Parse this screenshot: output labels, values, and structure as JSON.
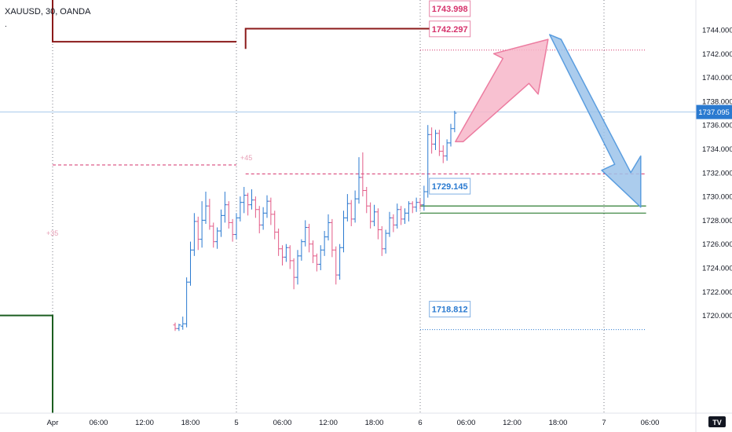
{
  "header": {
    "title": "XAUUSD, 30, OANDA",
    "dot": "."
  },
  "chart_data": {
    "type": "candlestick",
    "symbol": "XAUUSD",
    "interval": "30",
    "broker": "OANDA",
    "y_ticks": [
      "1720.000",
      "1722.000",
      "1724.000",
      "1726.000",
      "1728.000",
      "1730.000",
      "1732.000",
      "1734.000",
      "1736.000",
      "1738.000",
      "1740.000",
      "1742.000",
      "1744.000"
    ],
    "y_tick_values": [
      1720,
      1722,
      1724,
      1726,
      1728,
      1730,
      1732,
      1734,
      1736,
      1738,
      1740,
      1742,
      1744
    ],
    "ylim": [
      1718.3,
      1745.6
    ],
    "x_ticks": [
      "Apr",
      "06:00",
      "12:00",
      "18:00",
      "5",
      "06:00",
      "12:00",
      "18:00",
      "6",
      "06:00",
      "12:00",
      "18:00",
      "7",
      "06:00"
    ],
    "x_tick_hours": [
      0,
      6,
      12,
      18,
      24,
      30,
      36,
      42,
      48,
      54,
      60,
      66,
      72,
      78
    ],
    "last_price": "1737.095",
    "last_price_value": 1737.095,
    "levels": {
      "resistance_top": "1743.998",
      "resistance": "1742.297",
      "pivot": "1729.145",
      "support": "1718.812",
      "resistance_top_value": 1743.998,
      "resistance_value": 1742.297,
      "pivot_value": 1729.145,
      "support_value": 1718.812
    },
    "annotations": {
      "plus_left": "+35",
      "plus_right": "+45"
    },
    "colors": {
      "up": "#2a7ad0",
      "down": "#e25b87",
      "pink": "#d6336c",
      "blue": "#2a7ad0",
      "dark_red": "#8b1a1a",
      "green": "#2e7d32",
      "arrow_pink": "#f7b6c9",
      "arrow_blue": "#9cc3ea"
    },
    "candles": [
      [
        16.0,
        1719.2,
        1718.9,
        1719.4,
        1718.7
      ],
      [
        16.5,
        1718.9,
        1719.2,
        1719.3,
        1718.7
      ],
      [
        17.0,
        1719.1,
        1719.3,
        1719.9,
        1718.8
      ],
      [
        17.5,
        1719.3,
        1722.8,
        1723.2,
        1719.0
      ],
      [
        18.0,
        1722.8,
        1725.5,
        1726.2,
        1722.5
      ],
      [
        18.5,
        1725.5,
        1727.9,
        1728.6,
        1725.0
      ],
      [
        19.0,
        1727.9,
        1726.4,
        1728.3,
        1725.5
      ],
      [
        19.5,
        1726.4,
        1728.0,
        1729.6,
        1725.7
      ],
      [
        20.0,
        1728.0,
        1729.2,
        1730.4,
        1727.7
      ],
      [
        20.5,
        1729.2,
        1727.5,
        1729.8,
        1727.2
      ],
      [
        21.0,
        1727.5,
        1726.2,
        1727.8,
        1725.7
      ],
      [
        21.5,
        1726.2,
        1727.1,
        1727.4,
        1725.6
      ],
      [
        22.0,
        1727.1,
        1728.4,
        1728.9,
        1726.6
      ],
      [
        22.5,
        1728.4,
        1729.3,
        1730.4,
        1727.8
      ],
      [
        23.0,
        1729.3,
        1727.8,
        1729.6,
        1727.3
      ],
      [
        23.5,
        1727.8,
        1726.8,
        1728.1,
        1726.2
      ],
      [
        24.0,
        1726.8,
        1728.2,
        1728.6,
        1726.4
      ],
      [
        24.5,
        1728.2,
        1729.5,
        1730.0,
        1727.9
      ],
      [
        25.0,
        1729.5,
        1730.1,
        1730.8,
        1728.6
      ],
      [
        25.5,
        1730.1,
        1729.3,
        1730.3,
        1728.4
      ],
      [
        26.0,
        1729.3,
        1729.7,
        1730.6,
        1728.9
      ],
      [
        26.5,
        1729.7,
        1728.9,
        1730.0,
        1728.2
      ],
      [
        27.0,
        1728.9,
        1727.6,
        1729.2,
        1726.9
      ],
      [
        27.5,
        1727.6,
        1728.6,
        1729.1,
        1727.2
      ],
      [
        28.0,
        1728.6,
        1729.6,
        1730.1,
        1728.2
      ],
      [
        28.5,
        1729.6,
        1728.5,
        1729.9,
        1727.6
      ],
      [
        29.0,
        1728.5,
        1727.0,
        1728.8,
        1726.4
      ],
      [
        29.5,
        1727.0,
        1725.6,
        1727.3,
        1725.0
      ],
      [
        30.0,
        1725.6,
        1724.9,
        1725.9,
        1724.2
      ],
      [
        30.5,
        1724.9,
        1725.7,
        1726.0,
        1724.5
      ],
      [
        31.0,
        1725.7,
        1724.6,
        1725.9,
        1723.9
      ],
      [
        31.5,
        1724.6,
        1723.2,
        1724.8,
        1722.2
      ],
      [
        32.0,
        1723.2,
        1725.0,
        1725.5,
        1722.6
      ],
      [
        32.5,
        1725.0,
        1726.2,
        1726.4,
        1724.6
      ],
      [
        33.0,
        1726.2,
        1727.4,
        1728.0,
        1725.8
      ],
      [
        33.5,
        1727.4,
        1726.0,
        1727.7,
        1725.3
      ],
      [
        34.0,
        1726.0,
        1725.0,
        1726.3,
        1724.4
      ],
      [
        34.5,
        1725.0,
        1724.3,
        1725.2,
        1723.7
      ],
      [
        35.0,
        1724.3,
        1725.5,
        1725.9,
        1723.8
      ],
      [
        35.5,
        1725.5,
        1726.6,
        1727.1,
        1725.0
      ],
      [
        36.0,
        1726.6,
        1727.8,
        1728.5,
        1726.3
      ],
      [
        36.5,
        1727.8,
        1725.5,
        1728.1,
        1724.9
      ],
      [
        37.0,
        1725.5,
        1723.4,
        1725.8,
        1722.6
      ],
      [
        37.5,
        1723.4,
        1725.7,
        1726.0,
        1723.0
      ],
      [
        38.0,
        1725.7,
        1728.2,
        1728.8,
        1725.3
      ],
      [
        38.5,
        1728.2,
        1729.4,
        1730.2,
        1727.9
      ],
      [
        39.0,
        1729.4,
        1728.1,
        1729.7,
        1727.5
      ],
      [
        39.5,
        1728.1,
        1729.8,
        1730.5,
        1727.8
      ],
      [
        40.0,
        1729.8,
        1731.6,
        1733.3,
        1729.4
      ],
      [
        40.5,
        1731.6,
        1730.5,
        1733.7,
        1730.0
      ],
      [
        41.0,
        1730.5,
        1729.2,
        1730.8,
        1728.6
      ],
      [
        41.5,
        1729.2,
        1727.9,
        1729.5,
        1727.3
      ],
      [
        42.0,
        1727.9,
        1728.7,
        1729.3,
        1727.5
      ],
      [
        42.5,
        1728.7,
        1727.2,
        1729.0,
        1726.4
      ],
      [
        43.0,
        1727.2,
        1725.6,
        1727.5,
        1725.0
      ],
      [
        43.5,
        1725.6,
        1726.9,
        1727.2,
        1725.2
      ],
      [
        44.0,
        1726.9,
        1728.2,
        1728.7,
        1726.6
      ],
      [
        44.5,
        1728.2,
        1727.6,
        1728.5,
        1727.0
      ],
      [
        45.0,
        1727.6,
        1728.9,
        1729.4,
        1727.3
      ],
      [
        45.5,
        1728.9,
        1728.1,
        1729.2,
        1727.6
      ],
      [
        46.0,
        1728.1,
        1728.6,
        1729.0,
        1727.7
      ],
      [
        46.5,
        1728.6,
        1729.4,
        1729.6,
        1727.9
      ],
      [
        47.0,
        1729.4,
        1729.1,
        1729.6,
        1728.6
      ],
      [
        47.5,
        1729.1,
        1729.5,
        1729.9,
        1728.7
      ],
      [
        48.0,
        1729.5,
        1729.3,
        1729.8,
        1728.9
      ],
      [
        48.5,
        1729.3,
        1730.4,
        1730.9,
        1728.8
      ],
      [
        49.0,
        1730.4,
        1735.2,
        1736.0,
        1729.9
      ],
      [
        49.5,
        1735.2,
        1734.4,
        1735.8,
        1733.6
      ],
      [
        50.0,
        1734.4,
        1735.3,
        1735.6,
        1733.9
      ],
      [
        50.5,
        1735.3,
        1733.8,
        1735.6,
        1733.4
      ],
      [
        51.0,
        1733.8,
        1733.4,
        1734.3,
        1732.8
      ],
      [
        51.5,
        1733.4,
        1734.5,
        1734.8,
        1733.0
      ],
      [
        52.0,
        1734.5,
        1735.7,
        1736.1,
        1734.2
      ],
      [
        52.5,
        1735.7,
        1737.0,
        1737.2,
        1735.4
      ]
    ]
  },
  "footer": {
    "tv_logo": "TV"
  }
}
